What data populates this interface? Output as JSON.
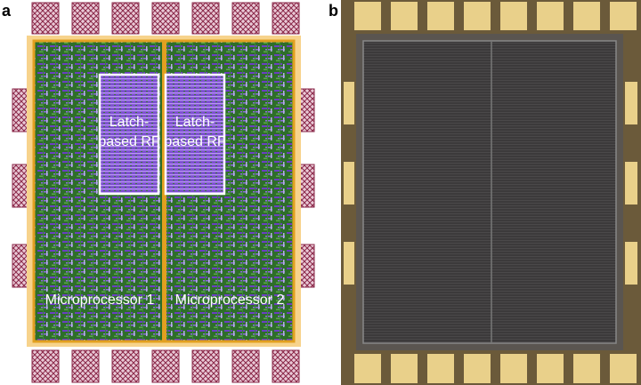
{
  "figure": {
    "panels": [
      {
        "label": "a",
        "regions": [
          {
            "label": "Latch-based RF",
            "lines": [
              "Latch-",
              "based RF"
            ]
          },
          {
            "label": "Latch-based RF",
            "lines": [
              "Latch-",
              "based RF"
            ]
          }
        ],
        "cores": [
          "Microprocessor 1",
          "Microprocessor 2"
        ]
      },
      {
        "label": "b"
      }
    ]
  }
}
